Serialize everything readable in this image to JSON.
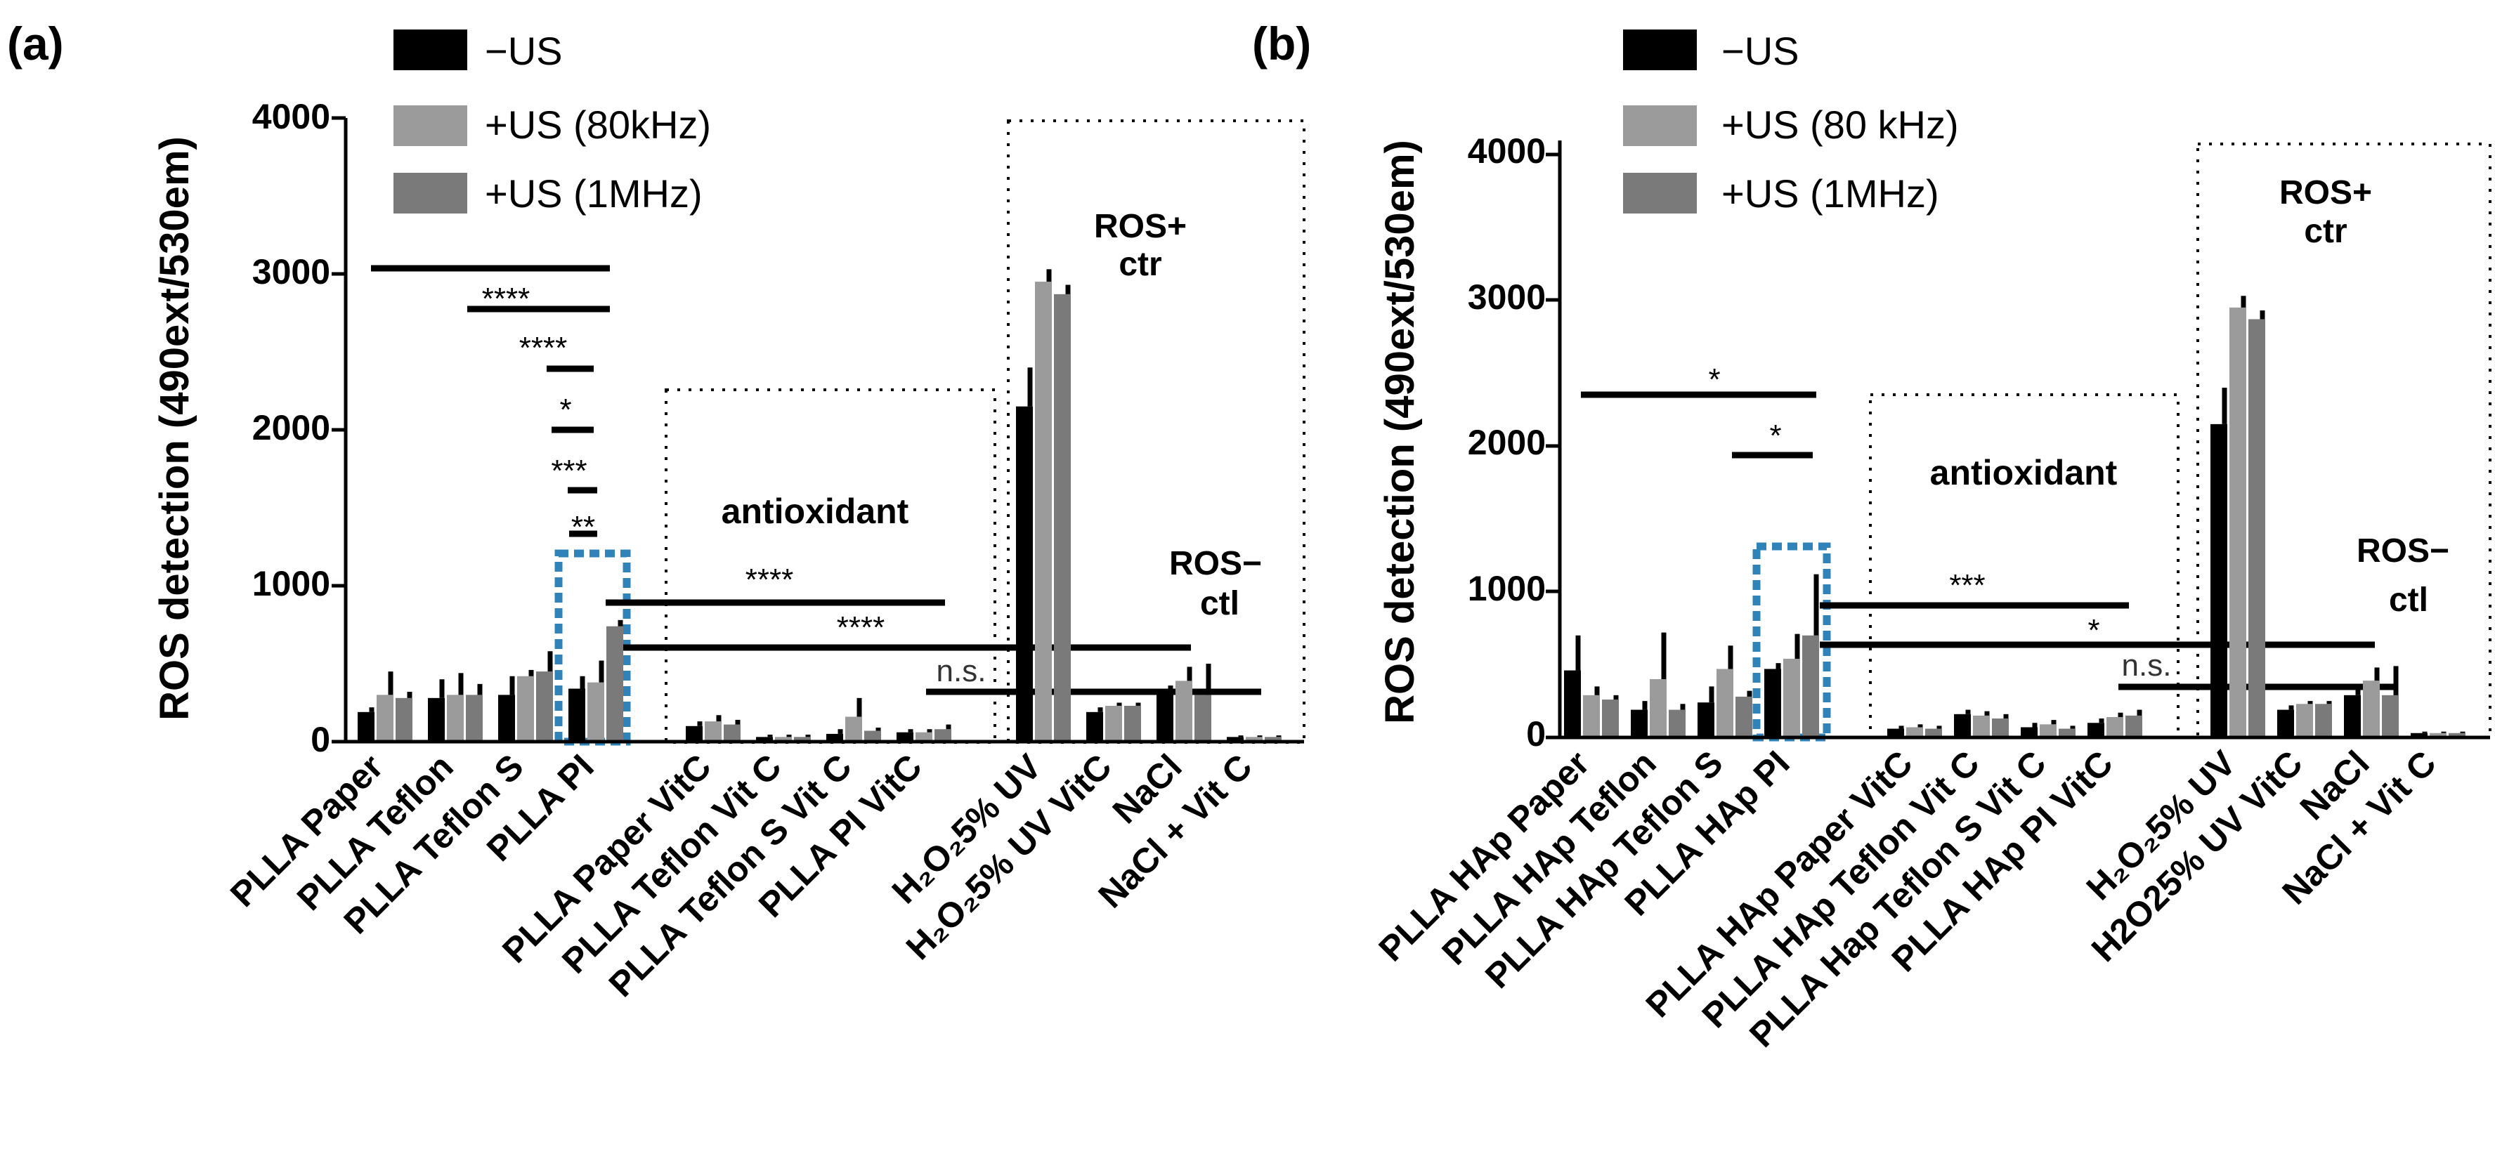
{
  "figure": {
    "colors": {
      "minus_us": "#000000",
      "us_80": "#9b9b9b",
      "us_1m": "#7a7a7a",
      "highlight": "#2f83b8",
      "axis": "#000000"
    }
  },
  "chart_data": [
    {
      "panel_label": "(a)",
      "type": "bar",
      "ylabel": "ROS detection (490ext/530em)",
      "ylim": [
        0,
        4000
      ],
      "yticks": [
        "0",
        "1000",
        "2000",
        "3000",
        "4000"
      ],
      "legend": [
        "−US",
        "+US (80kHz)",
        "+US (1MHz)"
      ],
      "categories": [
        "PLLA Paper",
        "PLLA Teflon",
        "PLLA Teflon S",
        "PLLA PI",
        "PLLA Paper VitC",
        "PLLA Teflon Vit C",
        "PLLA Teflon S Vit C",
        "PLLA PI VitC",
        "H₂O₂5% UV",
        "H₂O₂5% UV VitC",
        "NaCl",
        "NaCl + Vit C"
      ],
      "series": [
        {
          "name": "−US",
          "values": [
            190,
            280,
            300,
            340,
            100,
            30,
            50,
            60,
            2150,
            190,
            300,
            30
          ],
          "errors": [
            30,
            120,
            120,
            80,
            30,
            15,
            30,
            20,
            250,
            30,
            60,
            10
          ]
        },
        {
          "name": "+US (80kHz)",
          "values": [
            300,
            300,
            420,
            380,
            130,
            30,
            160,
            60,
            2950,
            230,
            390,
            30
          ],
          "errors": [
            150,
            140,
            40,
            140,
            40,
            15,
            120,
            20,
            80,
            20,
            90,
            10
          ]
        },
        {
          "name": "+US (1MHz)",
          "values": [
            280,
            300,
            450,
            740,
            110,
            30,
            70,
            80,
            2870,
            230,
            300,
            30
          ],
          "errors": [
            40,
            70,
            130,
            40,
            30,
            15,
            20,
            30,
            60,
            20,
            200,
            10
          ]
        }
      ],
      "significance": [
        "****",
        "****",
        "*",
        "***",
        "**",
        "****",
        "****",
        "n.s."
      ],
      "annotations": {
        "antioxidant": "antioxidant",
        "ros_pos": [
          "ROS+",
          "ctr"
        ],
        "ros_neg": [
          "ROS−",
          "ctl"
        ]
      }
    },
    {
      "panel_label": "(b)",
      "type": "bar",
      "ylabel": "ROS detection (490ext/530em)",
      "ylim": [
        0,
        4000
      ],
      "yticks": [
        "0",
        "1000",
        "2000",
        "3000",
        "4000"
      ],
      "legend": [
        "−US",
        "+US (80 kHz)",
        "+US (1MHz)"
      ],
      "categories": [
        "PLLA HAp Paper",
        "PLLA HAp Teflon",
        "PLLA HAp Teflon S",
        "PLLA HAp PI",
        "PLLA HAp Paper VitC",
        "PLLA HAp Teflon Vit C",
        "PLLA Hap Teflon S Vit C",
        "PLLA HAp PI VitC",
        "H₂O₂5% UV",
        "H2O25% UV VitC",
        "NaCl",
        "NaCl + Vit C"
      ],
      "series": [
        {
          "name": "−US",
          "values": [
            460,
            190,
            240,
            470,
            60,
            160,
            70,
            100,
            2150,
            190,
            290,
            30
          ],
          "errors": [
            240,
            60,
            110,
            40,
            20,
            30,
            30,
            30,
            250,
            30,
            60,
            10
          ]
        },
        {
          "name": "+US (80 kHz)",
          "values": [
            290,
            400,
            470,
            540,
            70,
            150,
            90,
            140,
            2950,
            230,
            390,
            30
          ],
          "errors": [
            60,
            320,
            160,
            170,
            20,
            30,
            30,
            30,
            80,
            20,
            90,
            10
          ]
        },
        {
          "name": "+US (1MHz)",
          "values": [
            260,
            190,
            280,
            700,
            60,
            130,
            60,
            150,
            2870,
            230,
            290,
            30
          ],
          "errors": [
            30,
            40,
            40,
            420,
            20,
            30,
            20,
            40,
            60,
            20,
            200,
            10
          ]
        }
      ],
      "significance": [
        "*",
        "*",
        "***",
        "*",
        "n.s."
      ],
      "annotations": {
        "antioxidant": "antioxidant",
        "ros_pos": [
          "ROS+",
          "ctr"
        ],
        "ros_neg": [
          "ROS−",
          "ctl"
        ]
      }
    }
  ]
}
